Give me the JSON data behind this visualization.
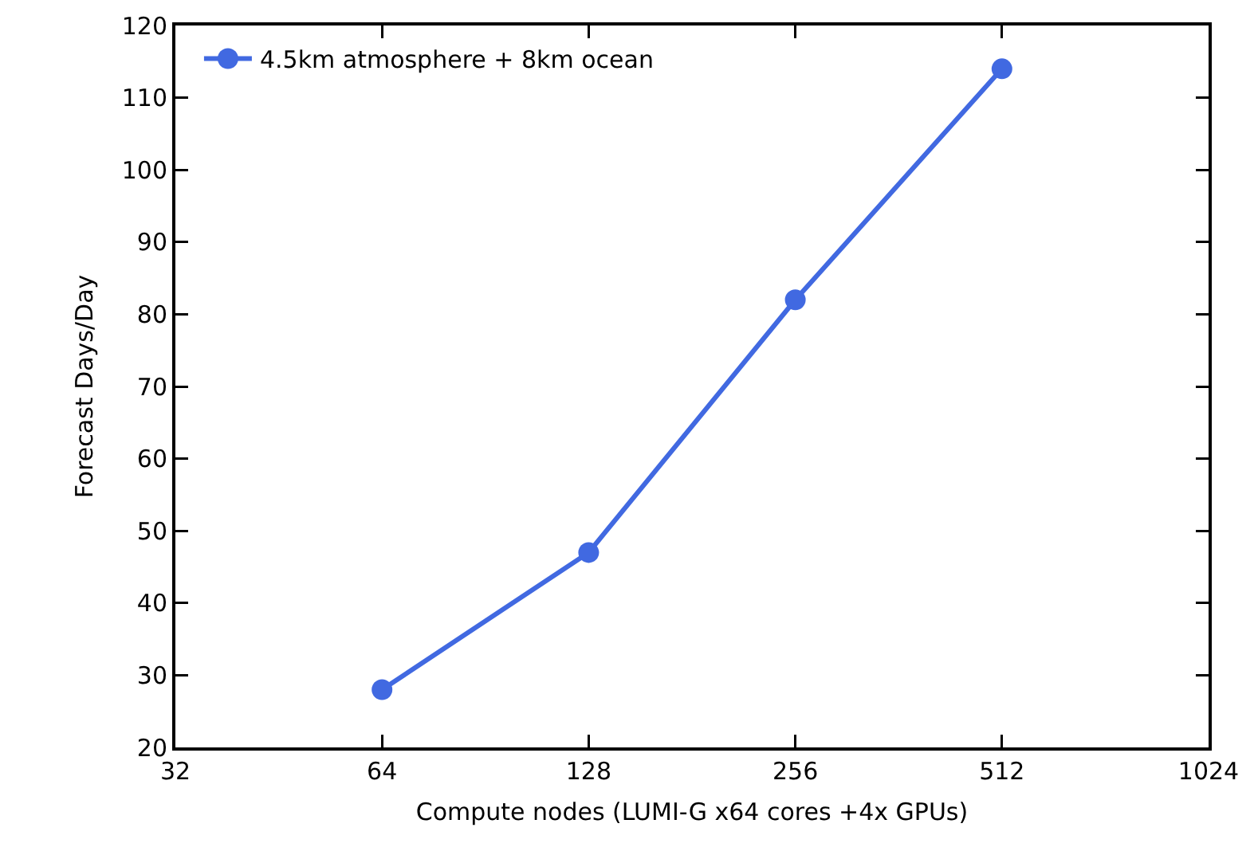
{
  "chart_data": {
    "type": "line",
    "xlabel": "Compute nodes (LUMI-G x64 cores +4x GPUs)",
    "ylabel": "Forecast Days/Day",
    "x": [
      64,
      128,
      256,
      512
    ],
    "series": [
      {
        "name": "4.5km atmosphere + 8km ocean",
        "color": "#4169e1",
        "values": [
          28,
          47,
          82,
          114
        ]
      }
    ],
    "log": "x",
    "xlim": [
      32,
      1024
    ],
    "xticks": [
      32,
      64,
      128,
      256,
      512,
      1024
    ],
    "ylim": [
      20,
      120
    ],
    "yticks": [
      20,
      30,
      40,
      50,
      60,
      70,
      80,
      90,
      100,
      110,
      120
    ],
    "grid": false,
    "legend": "top",
    "marker": "circle",
    "line_style": "solid"
  }
}
